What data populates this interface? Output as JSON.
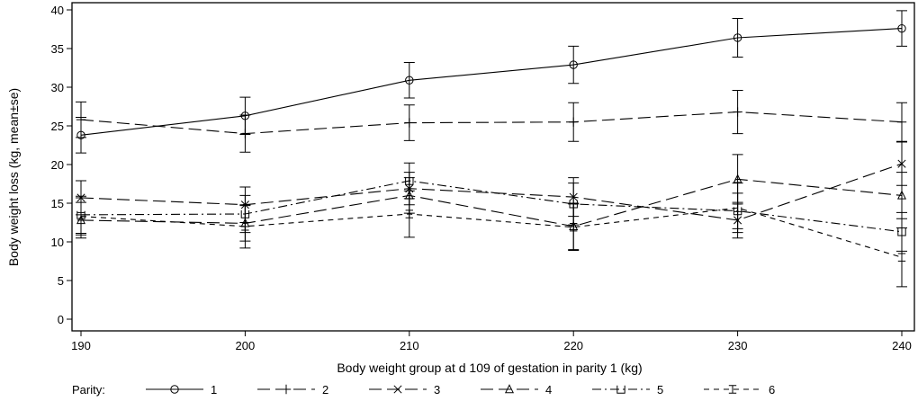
{
  "chart_data": {
    "type": "line",
    "title": "",
    "xlabel": "Body weight group at d 109 of gestation in parity 1 (kg)",
    "ylabel": "Body weight loss (kg, mean±se)",
    "x": [
      190,
      200,
      210,
      220,
      230,
      240
    ],
    "xlim": [
      190,
      240
    ],
    "ylim": [
      0,
      40
    ],
    "xticks": [
      190,
      200,
      210,
      220,
      230,
      240
    ],
    "yticks": [
      0,
      5,
      10,
      15,
      20,
      25,
      30,
      35,
      40
    ],
    "grid": false,
    "legend": {
      "title": "Parity:",
      "position": "bottom"
    },
    "series": [
      {
        "name": "1",
        "marker": "circle",
        "dash": "solid",
        "values": [
          23.8,
          26.3,
          30.9,
          32.9,
          36.4,
          37.6
        ],
        "se": [
          2.3,
          2.4,
          2.3,
          2.4,
          2.5,
          2.3
        ]
      },
      {
        "name": "2",
        "marker": "plus",
        "dash": "longdash",
        "values": [
          25.8,
          24.0,
          25.4,
          25.5,
          26.8,
          25.5
        ],
        "se": [
          2.3,
          2.4,
          2.3,
          2.5,
          2.8,
          2.5
        ]
      },
      {
        "name": "3",
        "marker": "x",
        "dash": "longdash",
        "values": [
          15.7,
          14.8,
          16.9,
          15.8,
          12.8,
          20.1
        ],
        "se": [
          2.2,
          2.3,
          2.1,
          2.5,
          2.3,
          2.8
        ]
      },
      {
        "name": "4",
        "marker": "triangle",
        "dash": "longdash",
        "values": [
          12.8,
          12.4,
          16.0,
          12.0,
          18.1,
          16.0
        ],
        "se": [
          2.3,
          2.3,
          2.3,
          3.0,
          3.2,
          3.0
        ]
      },
      {
        "name": "5",
        "marker": "square",
        "dash": "dashdot",
        "values": [
          13.5,
          13.6,
          17.9,
          14.9,
          14.0,
          11.3
        ],
        "se": [
          2.4,
          2.4,
          2.3,
          2.7,
          2.3,
          2.5
        ]
      },
      {
        "name": "6",
        "marker": "bar",
        "dash": "dash",
        "values": [
          13.3,
          12.0,
          13.6,
          11.9,
          14.4,
          8.0
        ],
        "se": [
          2.4,
          2.8,
          3.0,
          3.0,
          3.2,
          3.8
        ]
      }
    ]
  }
}
